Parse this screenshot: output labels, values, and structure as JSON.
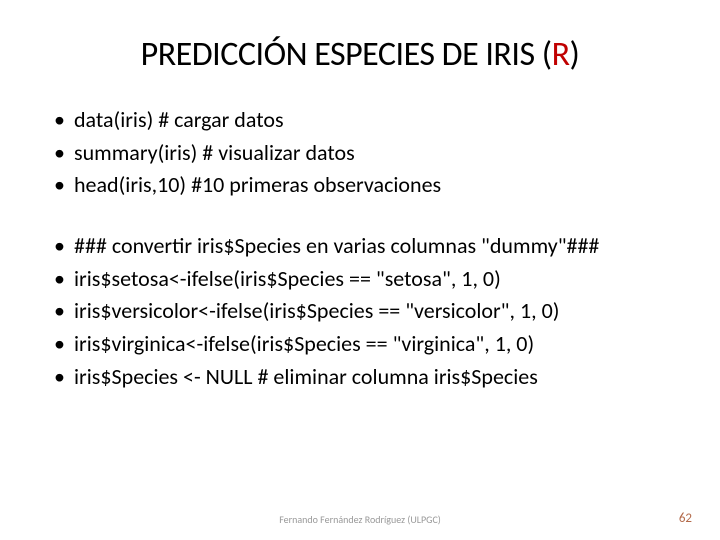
{
  "title": {
    "main": "PREDICCIÓN ESPECIES DE IRIS  ",
    "r_open": "(",
    "r_letter": "R",
    "r_close": ")",
    "title_fontsize": 34,
    "title_color": "#000000",
    "r_color": "#c00000"
  },
  "bullets_group1": [
    "data(iris) # cargar datos",
    "summary(iris) # visualizar datos",
    "head(iris,10) #10 primeras observaciones"
  ],
  "bullets_group2": [
    "### convertir iris$Species en varias columnas \"dummy\"###",
    "iris$setosa<-ifelse(iris$Species == \"setosa\", 1, 0)",
    "iris$versicolor<-ifelse(iris$Species == \"versicolor\", 1, 0)",
    "iris$virginica<-ifelse(iris$Species == \"virginica\", 1, 0)",
    "iris$Species <- NULL  # eliminar columna iris$Species"
  ],
  "bullet_fontsize": 22,
  "bullet_color": "#000000",
  "footer": {
    "author": "Fernando Fernández Rodríguez (ULPGC)",
    "author_color": "#9a9a9a",
    "page": "62",
    "page_color": "#b36a4a"
  },
  "background_color": "#ffffff",
  "slide_width": 720,
  "slide_height": 540
}
